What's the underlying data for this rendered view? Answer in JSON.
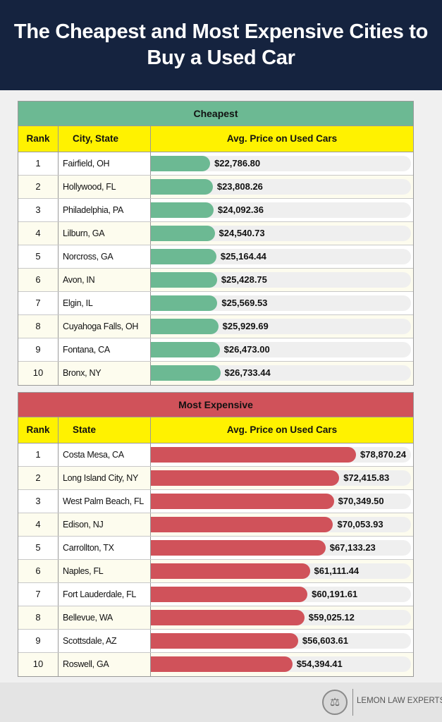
{
  "title": "The Cheapest and Most Expensive Cities to Buy a Used Car",
  "brand": "LEMON LAW EXPERTS",
  "chart_data": [
    {
      "type": "table",
      "title": "Cheapest",
      "color": "#6cb993",
      "columns": [
        "Rank",
        "City, State",
        "Avg. Price on Used Cars"
      ],
      "rows": [
        {
          "rank": "1",
          "city": "Fairfield, OH",
          "label": "$22,786.80",
          "value": 22786.8
        },
        {
          "rank": "2",
          "city": "Hollywood, FL",
          "label": "$23,808.26",
          "value": 23808.26
        },
        {
          "rank": "3",
          "city": "Philadelphia, PA",
          "label": "$24,092.36",
          "value": 24092.36
        },
        {
          "rank": "4",
          "city": "Lilburn, GA",
          "label": "$24,540.73",
          "value": 24540.73
        },
        {
          "rank": "5",
          "city": "Norcross, GA",
          "label": "$25,164.44",
          "value": 25164.44
        },
        {
          "rank": "6",
          "city": "Avon, IN",
          "label": "$25,428.75",
          "value": 25428.75
        },
        {
          "rank": "7",
          "city": "Elgin, IL",
          "label": "$25,569.53",
          "value": 25569.53
        },
        {
          "rank": "8",
          "city": "Cuyahoga Falls, OH",
          "label": "$25,929.69",
          "value": 25929.69
        },
        {
          "rank": "9",
          "city": "Fontana, CA",
          "label": "$26,473.00",
          "value": 26473.0
        },
        {
          "rank": "10",
          "city": "Bronx, NY",
          "label": "$26,733.44",
          "value": 26733.44
        }
      ]
    },
    {
      "type": "table",
      "title": "Most Expensive",
      "color": "#d0525a",
      "columns": [
        "Rank",
        "State",
        "Avg. Price on Used Cars"
      ],
      "rows": [
        {
          "rank": "1",
          "city": "Costa Mesa, CA",
          "label": "$78,870.24",
          "value": 78870.24
        },
        {
          "rank": "2",
          "city": "Long Island City, NY",
          "label": "$72,415.83",
          "value": 72415.83
        },
        {
          "rank": "3",
          "city": "West Palm Beach, FL",
          "label": "$70,349.50",
          "value": 70349.5
        },
        {
          "rank": "4",
          "city": "Edison, NJ",
          "label": "$70,053.93",
          "value": 70053.93
        },
        {
          "rank": "5",
          "city": "Carrollton, TX",
          "label": "$67,133.23",
          "value": 67133.23
        },
        {
          "rank": "6",
          "city": "Naples, FL",
          "label": "$61,111.44",
          "value": 61111.44
        },
        {
          "rank": "7",
          "city": "Fort Lauderdale, FL",
          "label": "$60,191.61",
          "value": 60191.61
        },
        {
          "rank": "8",
          "city": "Bellevue, WA",
          "label": "$59,025.12",
          "value": 59025.12
        },
        {
          "rank": "9",
          "city": "Scottsdale, AZ",
          "label": "$56,603.61",
          "value": 56603.61
        },
        {
          "rank": "10",
          "city": "Roswell, GA",
          "label": "$54,394.41",
          "value": 54394.41
        }
      ]
    }
  ]
}
